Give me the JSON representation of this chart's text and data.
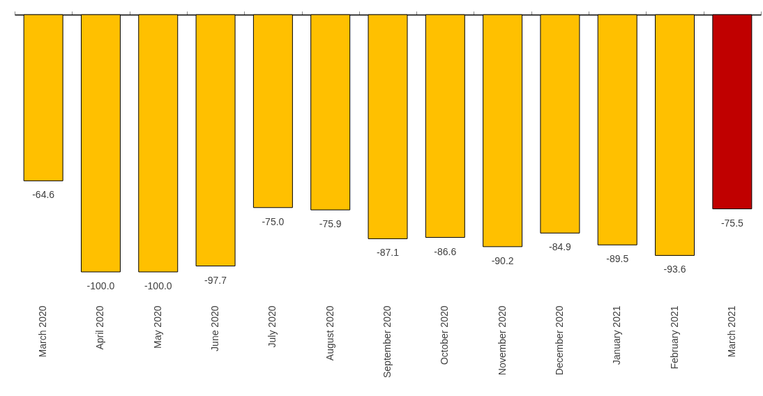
{
  "chart_data": {
    "type": "bar",
    "categories": [
      "March 2020",
      "April 2020",
      "May 2020",
      "June 2020",
      "July 2020",
      "August 2020",
      "September 2020",
      "October 2020",
      "November 2020",
      "December 2020",
      "January 2021",
      "February 2021",
      "March 2021"
    ],
    "values": [
      -64.6,
      -100,
      -100,
      -97.7,
      -75,
      -75.9,
      -87.1,
      -86.6,
      -90.2,
      -84.9,
      -89.5,
      -93.6,
      -75.5
    ],
    "value_labels": [
      "-64.6",
      "-100.0",
      "-100.0",
      "-97.7",
      "-75.0",
      "-75.9",
      "-87.1",
      "-86.6",
      "-90.2",
      "-84.9",
      "-89.5",
      "-93.6",
      "-75.5"
    ],
    "colors": [
      "#ffc000",
      "#ffc000",
      "#ffc000",
      "#ffc000",
      "#ffc000",
      "#ffc000",
      "#ffc000",
      "#ffc000",
      "#ffc000",
      "#ffc000",
      "#ffc000",
      "#ffc000",
      "#c00000"
    ]
  }
}
